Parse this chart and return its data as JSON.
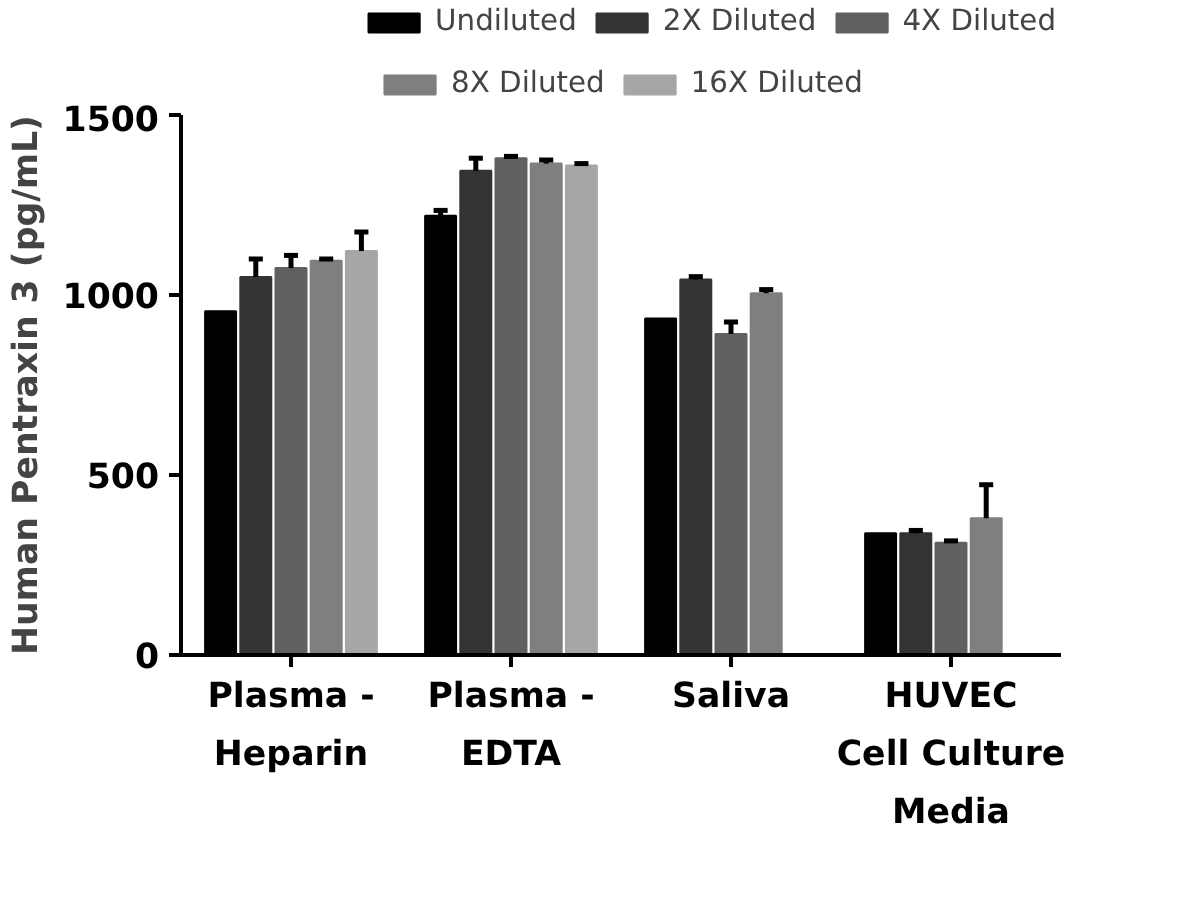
{
  "chart_data": {
    "type": "bar",
    "ylabel": "Human Pentraxin 3 (pg/mL)",
    "categories": [
      "Plasma -\nHeparin",
      "Plasma -\nEDTA",
      "Saliva",
      "HUVEC\nCell Culture\nMedia"
    ],
    "series": [
      {
        "name": "Undiluted",
        "color": "#000000",
        "values": [
          955,
          1220,
          935,
          338
        ],
        "errors": [
          null,
          [
            1220,
            1235
          ],
          null,
          null
        ]
      },
      {
        "name": "2X Diluted",
        "color": "#333333",
        "values": [
          1050,
          1345,
          1043,
          338
        ],
        "errors": [
          [
            1050,
            1100
          ],
          [
            1345,
            1380
          ],
          [
            1043,
            1051
          ],
          [
            338,
            346
          ]
        ]
      },
      {
        "name": "4X Diluted",
        "color": "#606060",
        "values": [
          1075,
          1380,
          892,
          312
        ],
        "errors": [
          [
            1075,
            1110
          ],
          [
            1380,
            1385
          ],
          [
            892,
            925
          ],
          [
            312,
            317
          ]
        ]
      },
      {
        "name": "8X Diluted",
        "color": "#7f7f7f",
        "values": [
          1095,
          1365,
          1005,
          380
        ],
        "errors": [
          [
            1095,
            1100
          ],
          [
            1365,
            1375
          ],
          [
            1005,
            1015
          ],
          [
            380,
            473
          ]
        ]
      },
      {
        "name": "16X Diluted",
        "color": "#a6a6a6",
        "values": [
          1122,
          1360,
          null,
          null
        ],
        "errors": [
          [
            1122,
            1175
          ],
          [
            1360,
            1365
          ],
          null,
          null
        ]
      }
    ],
    "ylim": [
      0,
      1500
    ],
    "yticks": [
      0,
      500,
      1000,
      1500
    ],
    "grid": false,
    "legend": "top"
  }
}
